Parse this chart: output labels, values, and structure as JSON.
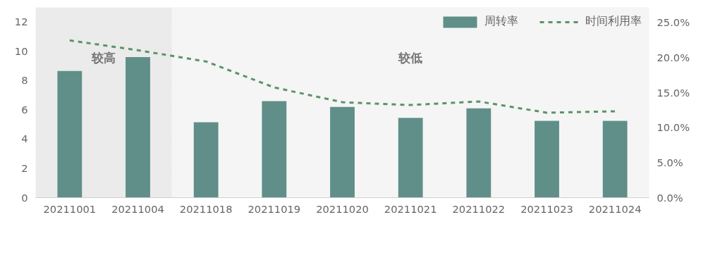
{
  "chart_data": {
    "type": "bar",
    "categories": [
      "20211001",
      "20211004",
      "20211018",
      "20211019",
      "20211020",
      "20211021",
      "20211022",
      "20211023",
      "20211024"
    ],
    "series": [
      {
        "name": "周转率",
        "color": "#5f8f88",
        "values": [
          8.65,
          9.6,
          5.15,
          6.6,
          6.2,
          5.45,
          6.1,
          5.25,
          5.25
        ]
      },
      {
        "name": "时间利用率",
        "type": "line",
        "axis": "y2",
        "color": "#5a9467",
        "line_style": "dashed",
        "values": [
          22.4,
          21.0,
          19.4,
          15.7,
          13.6,
          13.2,
          13.7,
          12.1,
          12.3
        ]
      }
    ],
    "ylim": [
      0,
      13
    ],
    "yticks": [
      0,
      2,
      4,
      6,
      8,
      10,
      12
    ],
    "y2lim": [
      0,
      27.1
    ],
    "y2ticks": [
      {
        "value": 0,
        "label": "0.0%"
      },
      {
        "value": 5,
        "label": "5.0%"
      },
      {
        "value": 10,
        "label": "10.0%"
      },
      {
        "value": 15,
        "label": "15.0%"
      },
      {
        "value": 20,
        "label": "20.0%"
      },
      {
        "value": 25,
        "label": "25.0%"
      }
    ],
    "bands": [
      {
        "axis": "x",
        "from": "20211001",
        "to": "20211004",
        "label": "较高",
        "color": "#ebebeb"
      },
      {
        "axis": "x",
        "from": "20211018",
        "to": "20211024",
        "label": "较低",
        "color": "#f5f5f5"
      }
    ],
    "grid": "y",
    "legend": "top right"
  }
}
